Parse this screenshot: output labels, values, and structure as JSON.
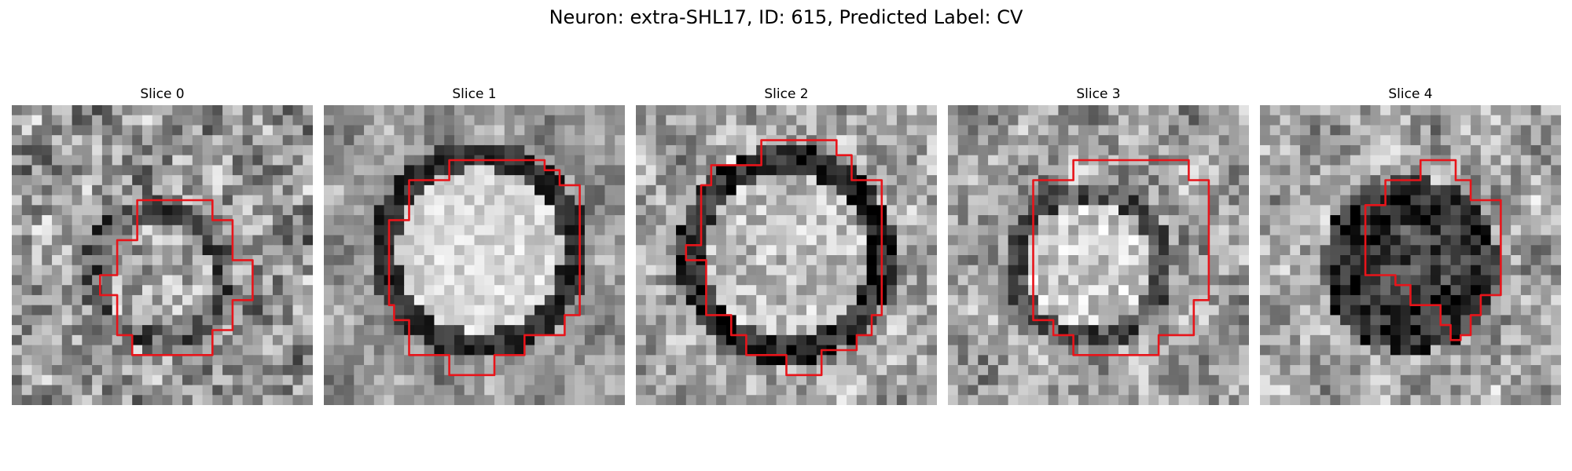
{
  "figure": {
    "title": "Neuron: extra-SHL17, ID: 615, Predicted Label: CV"
  },
  "colors": {
    "contour": "#e8141a",
    "background": "#ffffff"
  },
  "panels": [
    {
      "title": "Slice 0",
      "structure": "small dark-rimmed granular vesicle"
    },
    {
      "title": "Slice 1",
      "structure": "large bright vesicle with dark rim"
    },
    {
      "title": "Slice 2",
      "structure": "large vesicle with thick dark ring"
    },
    {
      "title": "Slice 3",
      "structure": "bright vesicle with thin dark rim"
    },
    {
      "title": "Slice 4",
      "structure": "dark irregular mass"
    }
  ]
}
